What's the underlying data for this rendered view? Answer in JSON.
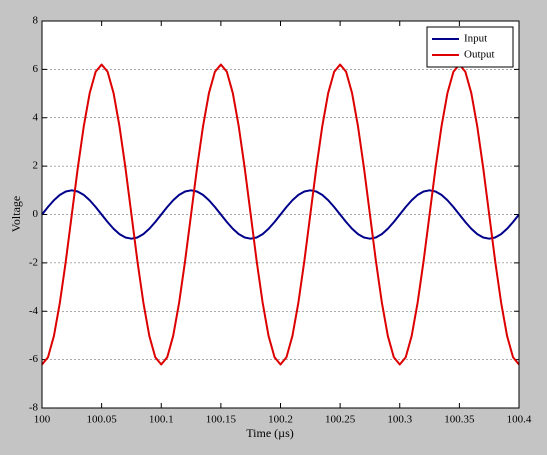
{
  "chart_data": {
    "type": "line",
    "xlabel": "Time (µs)",
    "ylabel": "Voltage",
    "x": [
      100,
      100.005,
      100.01,
      100.015,
      100.02,
      100.025,
      100.03,
      100.035,
      100.04,
      100.045,
      100.05,
      100.055,
      100.06,
      100.065,
      100.07,
      100.075,
      100.08,
      100.085,
      100.09,
      100.095,
      100.1,
      100.105,
      100.11,
      100.115,
      100.12,
      100.125,
      100.13,
      100.135,
      100.14,
      100.145,
      100.15,
      100.155,
      100.16,
      100.165,
      100.17,
      100.175,
      100.18,
      100.185,
      100.19,
      100.195,
      100.2,
      100.205,
      100.21,
      100.215,
      100.22,
      100.225,
      100.23,
      100.235,
      100.24,
      100.245,
      100.25,
      100.255,
      100.26,
      100.265,
      100.27,
      100.275,
      100.28,
      100.285,
      100.29,
      100.295,
      100.3,
      100.305,
      100.31,
      100.315,
      100.32,
      100.325,
      100.33,
      100.335,
      100.34,
      100.345,
      100.35,
      100.355,
      100.36,
      100.365,
      100.37,
      100.375,
      100.38,
      100.385,
      100.39,
      100.395,
      100.4
    ],
    "series": [
      {
        "name": "Input",
        "color": "#00008b",
        "values": [
          0,
          0.31,
          0.59,
          0.81,
          0.95,
          1,
          0.95,
          0.81,
          0.59,
          0.31,
          0,
          -0.31,
          -0.59,
          -0.81,
          -0.95,
          -1,
          -0.95,
          -0.81,
          -0.59,
          -0.31,
          0,
          0.31,
          0.59,
          0.81,
          0.95,
          1,
          0.95,
          0.81,
          0.59,
          0.31,
          0,
          -0.31,
          -0.59,
          -0.81,
          -0.95,
          -1,
          -0.95,
          -0.81,
          -0.59,
          -0.31,
          0,
          0.31,
          0.59,
          0.81,
          0.95,
          1,
          0.95,
          0.81,
          0.59,
          0.31,
          0,
          -0.31,
          -0.59,
          -0.81,
          -0.95,
          -1,
          -0.95,
          -0.81,
          -0.59,
          -0.31,
          0,
          0.31,
          0.59,
          0.81,
          0.95,
          1,
          0.95,
          0.81,
          0.59,
          0.31,
          0,
          -0.31,
          -0.59,
          -0.81,
          -0.95,
          -1,
          -0.95,
          -0.81,
          -0.59,
          -0.31,
          0
        ]
      },
      {
        "name": "Output",
        "color": "#dd0000",
        "values": [
          -6.2,
          -5.9,
          -5.02,
          -3.64,
          -1.92,
          0,
          1.92,
          3.64,
          5.02,
          5.9,
          6.2,
          5.9,
          5.02,
          3.64,
          1.92,
          0,
          -1.92,
          -3.64,
          -5.02,
          -5.9,
          -6.2,
          -5.9,
          -5.02,
          -3.64,
          -1.92,
          0,
          1.92,
          3.64,
          5.02,
          5.9,
          6.2,
          5.9,
          5.02,
          3.64,
          1.92,
          0,
          -1.92,
          -3.64,
          -5.02,
          -5.9,
          -6.2,
          -5.9,
          -5.02,
          -3.64,
          -1.92,
          0,
          1.92,
          3.64,
          5.02,
          5.9,
          6.2,
          5.9,
          5.02,
          3.64,
          1.92,
          0,
          -1.92,
          -3.64,
          -5.02,
          -5.9,
          -6.2,
          -5.9,
          -5.02,
          -3.64,
          -1.92,
          0,
          1.92,
          3.64,
          5.02,
          5.9,
          6.2,
          5.9,
          5.02,
          3.64,
          1.92,
          0,
          -1.92,
          -3.64,
          -5.02,
          -5.9,
          -6.2
        ]
      }
    ],
    "xlim": [
      100,
      100.4
    ],
    "xticks": [
      100,
      100.05,
      100.1,
      100.15,
      100.2,
      100.25,
      100.3,
      100.35,
      100.4
    ],
    "ylim": [
      -8,
      8
    ],
    "yticks": [
      -8,
      -6,
      -4,
      -2,
      0,
      2,
      4,
      6,
      8
    ],
    "grid": "y",
    "legend": "upper right"
  }
}
